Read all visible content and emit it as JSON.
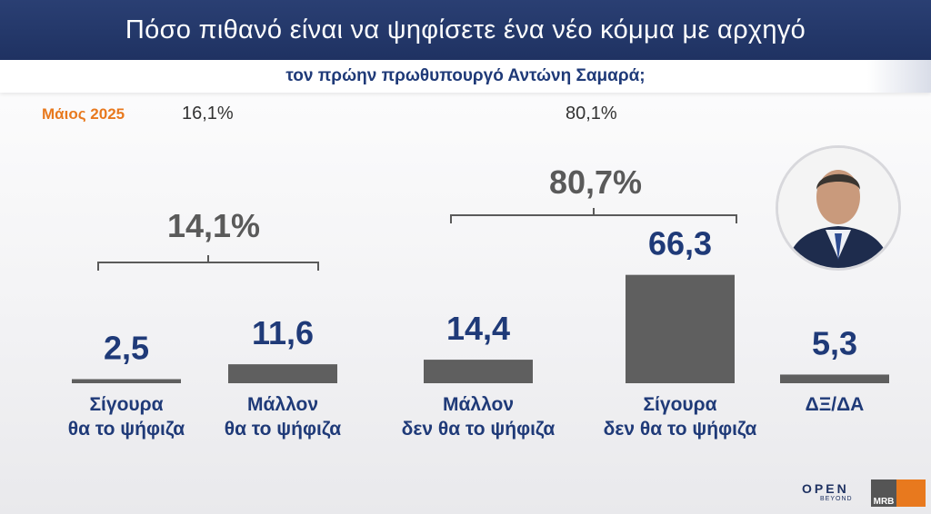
{
  "header": {
    "title": "Πόσο πιθανό είναι να ψηφίσετε ένα νέο κόμμα με αρχηγό",
    "subtitle": "τον πρώην πρωθυπουργό Αντώνη Σαμαρά;"
  },
  "comparison": {
    "period": "Μάιος 2025",
    "positive": "16,1%",
    "negative": "80,1%"
  },
  "groups": {
    "positive_total": "14,1%",
    "negative_total": "80,7%"
  },
  "logos": {
    "open": "OPEN",
    "open_sub": "BEYOND",
    "mrb": "MRB"
  },
  "colors": {
    "bar": "#5f5f5f",
    "value": "#1f3a78",
    "label": "#1f3a78",
    "bracket": "#5a5a5a",
    "accent": "#e8791e"
  },
  "chart_data": {
    "type": "bar",
    "categories": [
      [
        "Σίγουρα",
        "θα το ψήφιζα"
      ],
      [
        "Μάλλον",
        "θα το ψήφιζα"
      ],
      [
        "Μάλλον",
        "δεν θα το ψήφιζα"
      ],
      [
        "Σίγουρα",
        "δεν θα το ψήφιζα"
      ],
      [
        "ΔΞ/ΔΑ"
      ]
    ],
    "values": [
      2.5,
      11.6,
      14.4,
      66.3,
      5.3
    ],
    "value_labels": [
      "2,5",
      "11,6",
      "14,4",
      "66,3",
      "5,3"
    ],
    "ylim": [
      0,
      100
    ]
  }
}
